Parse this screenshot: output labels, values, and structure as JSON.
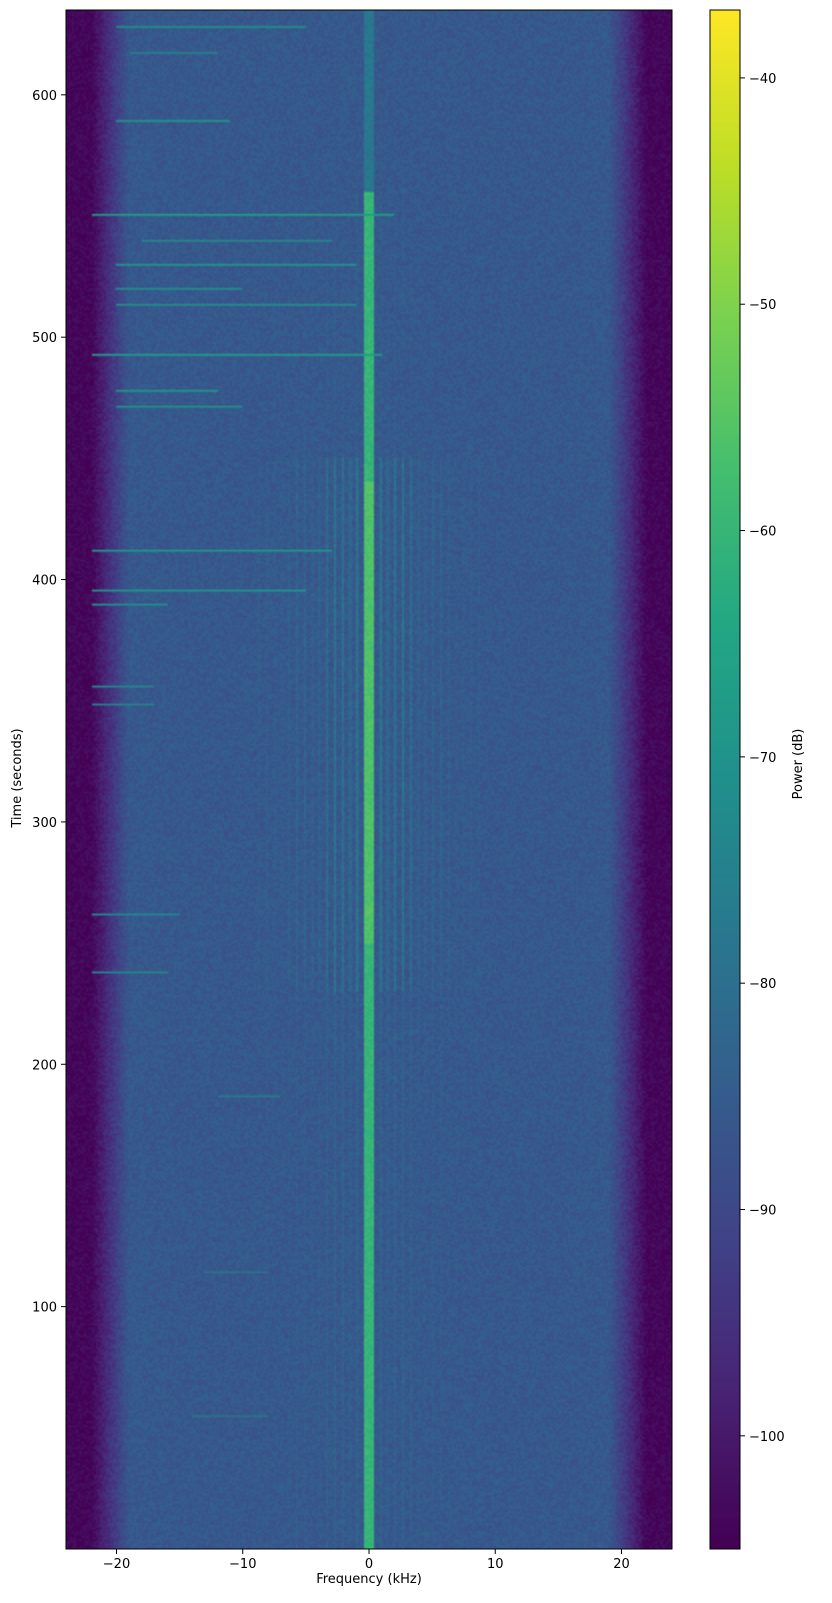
{
  "chart_data": {
    "type": "heatmap",
    "title": "",
    "xlabel": "Frequency (kHz)",
    "ylabel": "Time (seconds)",
    "colorbar_label": "Power (dB)",
    "colormap": "viridis",
    "xlim": [
      -24,
      24
    ],
    "ylim": [
      0,
      635
    ],
    "clim": [
      -105,
      -37
    ],
    "x_ticks": [
      -20,
      -10,
      0,
      10,
      20
    ],
    "x_tick_labels": [
      "−20",
      "−10",
      "0",
      "10",
      "20"
    ],
    "y_ticks": [
      100,
      200,
      300,
      400,
      500,
      600
    ],
    "y_tick_labels": [
      "100",
      "200",
      "300",
      "400",
      "500",
      "600"
    ],
    "colorbar_ticks": [
      -40,
      -50,
      -60,
      -70,
      -80,
      -90,
      -100
    ],
    "colorbar_tick_labels": [
      "−40",
      "−50",
      "−60",
      "−70",
      "−80",
      "−90",
      "−100"
    ],
    "power_profile": {
      "noise_floor_db": -86,
      "edge_power_db": -104,
      "center_carrier_db": -60,
      "center_carrier_peak_db": -57,
      "sideband_spacing_khz": 0.6,
      "sideband_extent_khz": 9,
      "sideband_time_ranges": [
        [
          230,
          310
        ],
        [
          310,
          450
        ]
      ]
    },
    "interference_lines": [
      {
        "t": 628,
        "f_start": -20,
        "f_end": -5,
        "db": -72
      },
      {
        "t": 618,
        "f_start": -19,
        "f_end": -12,
        "db": -76
      },
      {
        "t": 590,
        "f_start": -20,
        "f_end": -11,
        "db": -70
      },
      {
        "t": 551,
        "f_start": -22,
        "f_end": 2,
        "db": -68
      },
      {
        "t": 540,
        "f_start": -18,
        "f_end": -3,
        "db": -74
      },
      {
        "t": 530,
        "f_start": -20,
        "f_end": -1,
        "db": -70
      },
      {
        "t": 520,
        "f_start": -20,
        "f_end": -10,
        "db": -72
      },
      {
        "t": 514,
        "f_start": -20,
        "f_end": -1,
        "db": -72
      },
      {
        "t": 493,
        "f_start": -22,
        "f_end": 1,
        "db": -68
      },
      {
        "t": 478,
        "f_start": -20,
        "f_end": -12,
        "db": -70
      },
      {
        "t": 472,
        "f_start": -20,
        "f_end": -10,
        "db": -72
      },
      {
        "t": 412,
        "f_start": -22,
        "f_end": -3,
        "db": -70
      },
      {
        "t": 396,
        "f_start": -22,
        "f_end": -5,
        "db": -70
      },
      {
        "t": 390,
        "f_start": -22,
        "f_end": -16,
        "db": -72
      },
      {
        "t": 356,
        "f_start": -22,
        "f_end": -17,
        "db": -74
      },
      {
        "t": 349,
        "f_start": -22,
        "f_end": -17,
        "db": -76
      },
      {
        "t": 262,
        "f_start": -22,
        "f_end": -15,
        "db": -74
      },
      {
        "t": 238,
        "f_start": -22,
        "f_end": -16,
        "db": -74
      },
      {
        "t": 187,
        "f_start": -12,
        "f_end": -7,
        "db": -78
      },
      {
        "t": 115,
        "f_start": -13,
        "f_end": -8,
        "db": -80
      },
      {
        "t": 55,
        "f_start": -14,
        "f_end": -8,
        "db": -80
      }
    ]
  }
}
